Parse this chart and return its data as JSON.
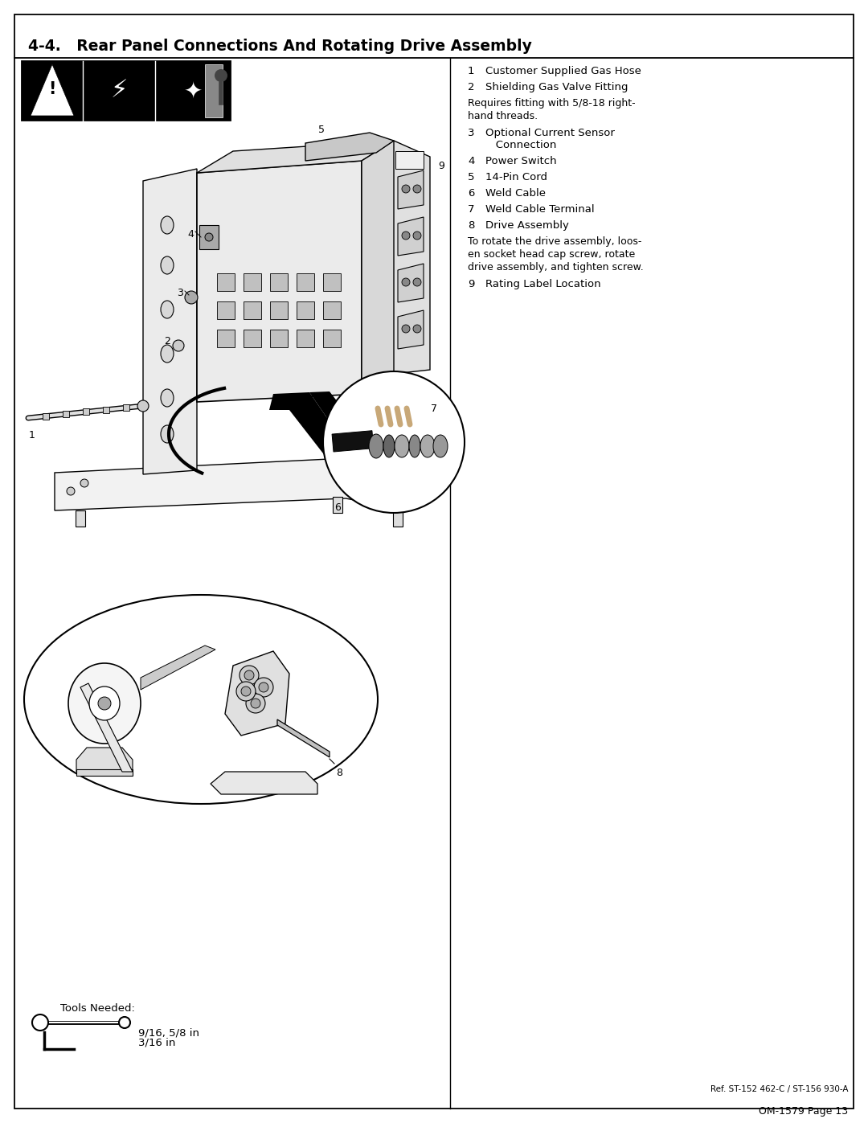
{
  "title": "4-4.   Rear Panel Connections And Rotating Drive Assembly",
  "page_ref": "Ref. ST-152 462-C / ST-156 930-A",
  "page_num": "OM-1579 Page 13",
  "bg_color": "#ffffff",
  "title_fontsize": 13.5,
  "body_fontsize": 9.5,
  "note_fontsize": 9.0,
  "items": [
    {
      "num": "1",
      "text": "Customer Supplied Gas Hose",
      "note": false
    },
    {
      "num": "2",
      "text": "Shielding Gas Valve Fitting",
      "note": false
    },
    {
      "num": "",
      "text": "Requires fitting with 5/8-18 right-\nhand threads.",
      "note": true
    },
    {
      "num": "3",
      "text": "Optional Current Sensor\n   Connection",
      "note": false
    },
    {
      "num": "4",
      "text": "Power Switch",
      "note": false
    },
    {
      "num": "5",
      "text": "14-Pin Cord",
      "note": false
    },
    {
      "num": "6",
      "text": "Weld Cable",
      "note": false
    },
    {
      "num": "7",
      "text": "Weld Cable Terminal",
      "note": false
    },
    {
      "num": "8",
      "text": "Drive Assembly",
      "note": false
    },
    {
      "num": "",
      "text": "To rotate the drive assembly, loos-\nen socket head cap screw, rotate\ndrive assembly, and tighten screw.",
      "note": true
    },
    {
      "num": "9",
      "text": "Rating Label Location",
      "note": false
    }
  ],
  "tools_label": "Tools Needed:",
  "tool1": "9/16, 5/8 in",
  "tool2": "3/16 in"
}
